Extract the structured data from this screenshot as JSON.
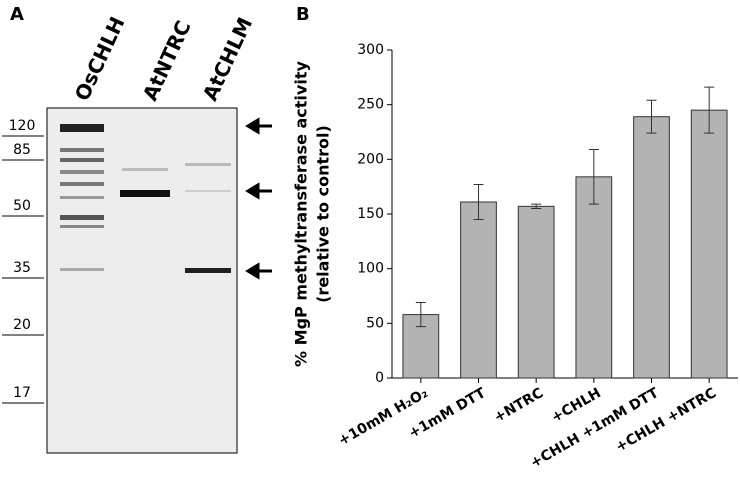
{
  "gel": {
    "panel_label": "A",
    "lanes": [
      "OsCHLH",
      "AtNTRC",
      "AtCHLM"
    ],
    "markers": [
      120,
      85,
      50,
      35,
      20,
      17
    ]
  },
  "chart_data": {
    "type": "bar",
    "panel_label": "B",
    "ylabel": [
      "% MgP methyltransferase activity",
      "(relative to control)"
    ],
    "categories": [
      "+10mM H₂O₂",
      "+1mM DTT",
      "+NTRC",
      "+CHLH",
      "+CHLH +1mM DTT",
      "+CHLH +NTRC"
    ],
    "values": [
      58,
      161,
      157,
      184,
      239,
      245
    ],
    "errors": [
      11,
      16,
      2,
      25,
      15,
      21
    ],
    "color": "#b3b3b3",
    "ylim": [
      0,
      300
    ],
    "yticks": [
      0,
      50,
      100,
      150,
      200,
      250,
      300
    ]
  }
}
